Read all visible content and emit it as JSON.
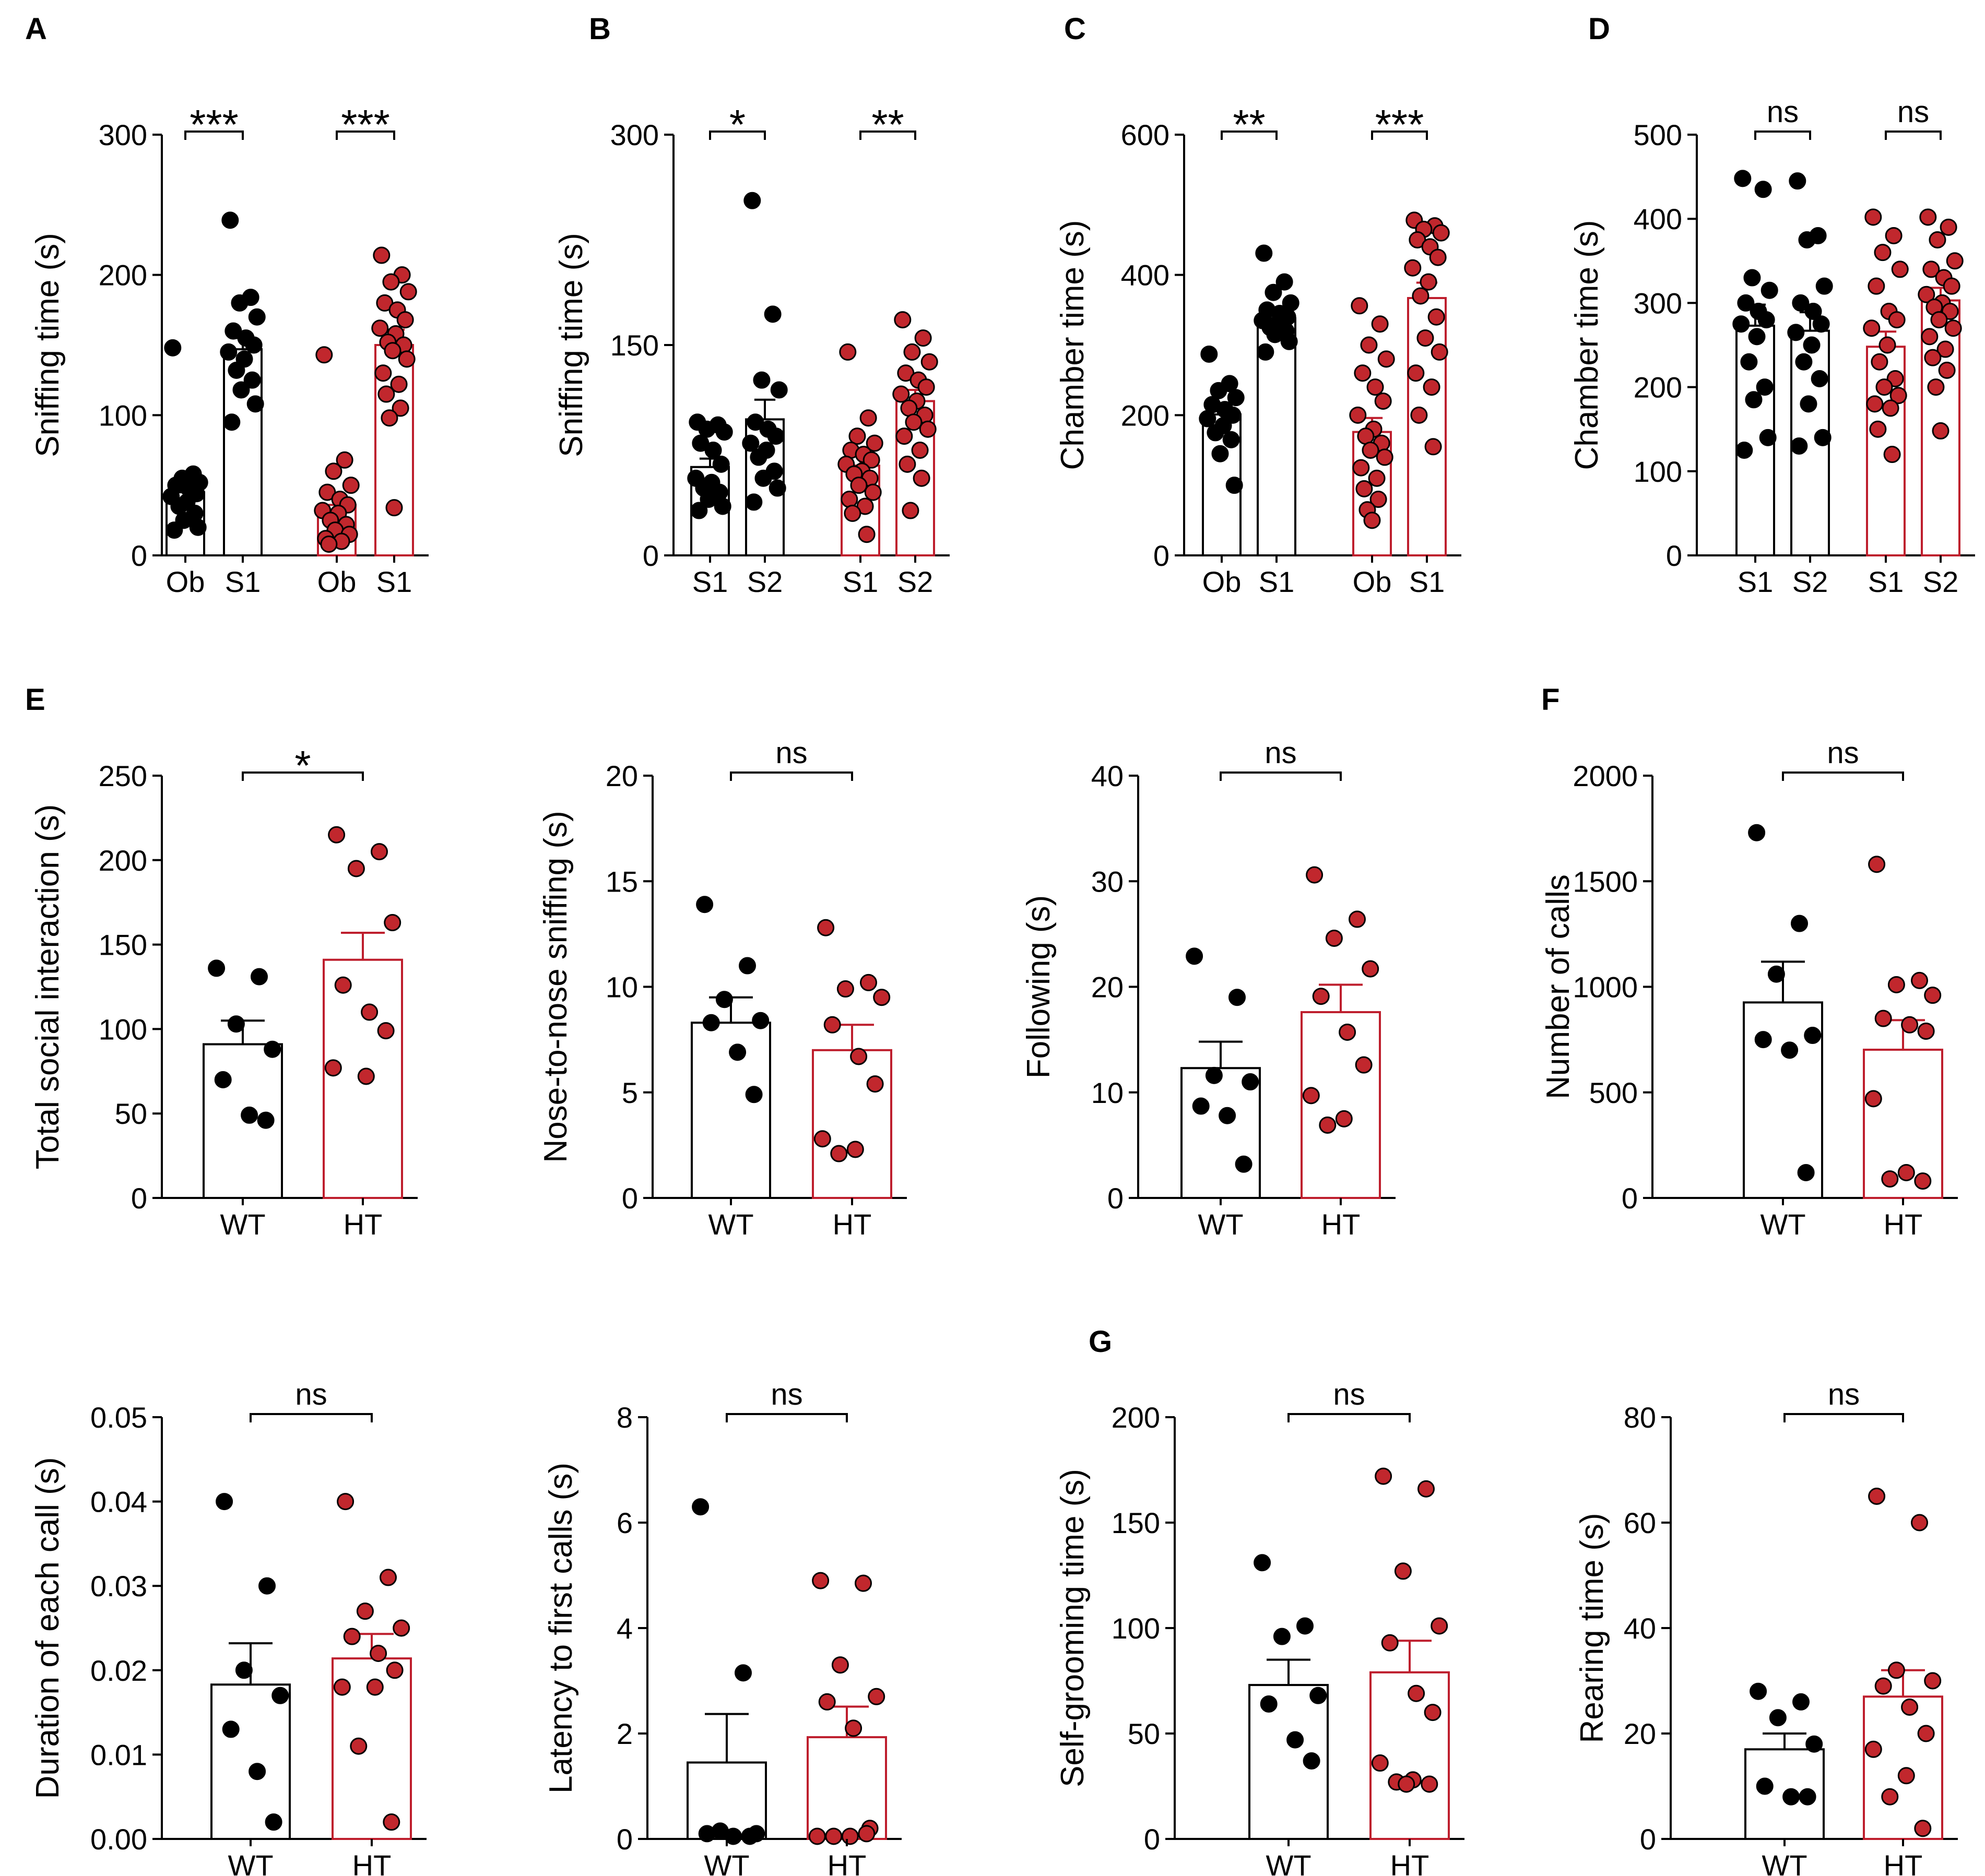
{
  "colors": {
    "wt": "#000000",
    "ht": "#be1e2d",
    "ht_dot": "#c1272d",
    "bar_fill": "#ffffff"
  },
  "panel_letters": [
    "A",
    "B",
    "C",
    "D",
    "E",
    "F",
    "G"
  ],
  "chart_data": [
    {
      "type": "bar",
      "letter": "A",
      "ylabel": "Sniffing time (s)",
      "ylim": [
        0,
        300
      ],
      "yticks": [
        "0",
        "100",
        "200",
        "300"
      ],
      "categories": [
        "Ob",
        "S1",
        "Ob",
        "S1"
      ],
      "groups": [
        "WT",
        "WT",
        "HT",
        "HT"
      ],
      "means": [
        45,
        147,
        36,
        150
      ],
      "sem": [
        5,
        8,
        6,
        11
      ],
      "points": [
        [
          148,
          58,
          55,
          52,
          50,
          48,
          44,
          42,
          38,
          35,
          30,
          25,
          20,
          18
        ],
        [
          239,
          184,
          180,
          170,
          160,
          155,
          150,
          145,
          140,
          132,
          125,
          118,
          108,
          95
        ],
        [
          143,
          68,
          60,
          50,
          45,
          40,
          36,
          32,
          30,
          25,
          22,
          18,
          15,
          12,
          10,
          8
        ],
        [
          214,
          200,
          195,
          188,
          180,
          175,
          168,
          162,
          158,
          152,
          150,
          146,
          140,
          130,
          122,
          115,
          105,
          98,
          34
        ]
      ],
      "significance": [
        "***",
        "***"
      ]
    },
    {
      "type": "bar",
      "letter": "B",
      "ylabel": "Sniffing time (s)",
      "ylim": [
        0,
        300
      ],
      "yticks": [
        "0",
        "150",
        "300"
      ],
      "categories": [
        "S1",
        "S2",
        "S1",
        "S2"
      ],
      "groups": [
        "WT",
        "WT",
        "HT",
        "HT"
      ],
      "means": [
        63,
        97,
        64,
        110
      ],
      "sem": [
        6,
        14,
        7,
        8
      ],
      "points": [
        [
          95,
          93,
          90,
          88,
          80,
          75,
          65,
          55,
          52,
          48,
          45,
          40,
          35,
          32
        ],
        [
          253,
          172,
          125,
          118,
          95,
          90,
          85,
          80,
          75,
          70,
          60,
          55,
          48,
          38
        ],
        [
          145,
          98,
          85,
          80,
          75,
          72,
          68,
          65,
          60,
          58,
          55,
          50,
          45,
          40,
          35,
          30,
          15
        ],
        [
          168,
          155,
          145,
          138,
          130,
          125,
          120,
          115,
          110,
          105,
          100,
          95,
          90,
          85,
          75,
          65,
          55,
          32
        ]
      ],
      "significance": [
        "*",
        "**"
      ]
    },
    {
      "type": "bar",
      "letter": "C",
      "ylabel": "Chamber time (s)",
      "ylim": [
        0,
        600
      ],
      "yticks": [
        "0",
        "200",
        "400",
        "600"
      ],
      "categories": [
        "Ob",
        "S1",
        "Ob",
        "S1"
      ],
      "groups": [
        "WT",
        "WT",
        "HT",
        "HT"
      ],
      "means": [
        201,
        338,
        176,
        367
      ],
      "sem": [
        12,
        10,
        20,
        22
      ],
      "points": [
        [
          287,
          245,
          235,
          225,
          215,
          208,
          200,
          195,
          185,
          175,
          165,
          145,
          100
        ],
        [
          431,
          390,
          375,
          360,
          350,
          345,
          340,
          335,
          330,
          325,
          320,
          315,
          305,
          290
        ],
        [
          356,
          330,
          300,
          280,
          260,
          240,
          220,
          200,
          180,
          170,
          160,
          150,
          140,
          125,
          110,
          95,
          80,
          65,
          50
        ],
        [
          478,
          470,
          465,
          460,
          450,
          440,
          425,
          410,
          390,
          370,
          340,
          310,
          290,
          260,
          240,
          200,
          155
        ]
      ],
      "significance": [
        "**",
        "***"
      ]
    },
    {
      "type": "bar",
      "letter": "D",
      "ylabel": "Chamber time (s)",
      "ylim": [
        0,
        500
      ],
      "yticks": [
        "0",
        "100",
        "200",
        "300",
        "400",
        "500"
      ],
      "categories": [
        "S1",
        "S2",
        "S1",
        "S2"
      ],
      "groups": [
        "WT",
        "WT",
        "HT",
        "HT"
      ],
      "means": [
        273,
        267,
        248,
        303
      ],
      "sem": [
        25,
        22,
        18,
        15
      ],
      "points": [
        [
          448,
          435,
          330,
          315,
          300,
          290,
          280,
          275,
          260,
          230,
          200,
          185,
          140,
          125
        ],
        [
          445,
          380,
          375,
          320,
          300,
          290,
          275,
          265,
          250,
          230,
          210,
          180,
          140,
          130
        ],
        [
          402,
          380,
          360,
          340,
          320,
          290,
          280,
          270,
          250,
          230,
          210,
          200,
          190,
          180,
          175,
          150,
          120
        ],
        [
          402,
          390,
          375,
          350,
          340,
          330,
          320,
          310,
          300,
          295,
          290,
          280,
          270,
          260,
          245,
          235,
          220,
          200,
          148
        ]
      ],
      "significance": [
        "ns",
        "ns"
      ]
    },
    {
      "type": "bar",
      "letter": "E",
      "ylabel": "Total social interaction (s)",
      "ylim": [
        0,
        250
      ],
      "yticks": [
        "0",
        "50",
        "100",
        "150",
        "200",
        "250"
      ],
      "categories": [
        "WT",
        "HT"
      ],
      "groups": [
        "WT",
        "HT"
      ],
      "means": [
        91,
        141
      ],
      "sem": [
        14,
        16
      ],
      "points": [
        [
          136,
          131,
          103,
          88,
          70,
          49,
          46
        ],
        [
          215,
          205,
          195,
          163,
          126,
          110,
          99,
          77,
          72
        ]
      ],
      "significance": [
        "*"
      ]
    },
    {
      "type": "bar",
      "letter": "",
      "ylabel": "Nose-to-nose sniffing (s)",
      "ylim": [
        0,
        20
      ],
      "yticks": [
        "0",
        "5",
        "10",
        "15",
        "20"
      ],
      "categories": [
        "WT",
        "HT"
      ],
      "groups": [
        "WT",
        "HT"
      ],
      "means": [
        8.3,
        7.0
      ],
      "sem": [
        1.2,
        1.2
      ],
      "points": [
        [
          13.9,
          11.0,
          9.4,
          8.4,
          8.3,
          6.9,
          4.9
        ],
        [
          12.8,
          10.2,
          9.9,
          9.5,
          8.2,
          6.7,
          5.4,
          2.8,
          2.3,
          2.1
        ]
      ],
      "significance": [
        "ns"
      ]
    },
    {
      "type": "bar",
      "letter": "",
      "ylabel": "Following (s)",
      "ylim": [
        0,
        40
      ],
      "yticks": [
        "0",
        "10",
        "20",
        "30",
        "40"
      ],
      "categories": [
        "WT",
        "HT"
      ],
      "groups": [
        "WT",
        "HT"
      ],
      "means": [
        12.3,
        17.6
      ],
      "sem": [
        2.5,
        2.6
      ],
      "points": [
        [
          22.9,
          19.0,
          11.6,
          11.0,
          8.7,
          7.8,
          3.2
        ],
        [
          30.6,
          26.4,
          24.6,
          21.7,
          19.1,
          15.7,
          12.6,
          9.7,
          7.5,
          6.9
        ]
      ],
      "significance": [
        "ns"
      ]
    },
    {
      "type": "bar",
      "letter": "F",
      "ylabel": "Number of calls",
      "ylim": [
        0,
        2000
      ],
      "yticks": [
        "0",
        "500",
        "1000",
        "1500",
        "2000"
      ],
      "categories": [
        "WT",
        "HT"
      ],
      "groups": [
        "WT",
        "HT"
      ],
      "means": [
        926,
        702
      ],
      "sem": [
        193,
        140
      ],
      "points": [
        [
          1730,
          1300,
          1060,
          770,
          750,
          700,
          120
        ],
        [
          1580,
          1030,
          1010,
          960,
          850,
          820,
          790,
          470,
          120,
          90,
          80
        ]
      ],
      "significance": [
        "ns"
      ]
    },
    {
      "type": "bar",
      "letter": "",
      "ylabel": "Duration of each call (s)",
      "ylim": [
        0,
        0.05
      ],
      "yticks": [
        "0.00",
        "0.01",
        "0.02",
        "0.03",
        "0.04",
        "0.05"
      ],
      "categories": [
        "WT",
        "HT"
      ],
      "groups": [
        "WT",
        "HT"
      ],
      "means": [
        0.0183,
        0.0214
      ],
      "sem": [
        0.0049,
        0.0029
      ],
      "points": [
        [
          0.04,
          0.03,
          0.02,
          0.017,
          0.013,
          0.008,
          0.002
        ],
        [
          0.04,
          0.031,
          0.027,
          0.025,
          0.024,
          0.022,
          0.02,
          0.018,
          0.018,
          0.011,
          0.002
        ]
      ],
      "significance": [
        "ns"
      ]
    },
    {
      "type": "bar",
      "letter": "",
      "ylabel": "Latency to first calls (s)",
      "ylim": [
        0,
        8
      ],
      "yticks": [
        "0",
        "2",
        "4",
        "6",
        "8"
      ],
      "categories": [
        "WT",
        "HT"
      ],
      "groups": [
        "WT",
        "HT"
      ],
      "means": [
        1.45,
        1.93
      ],
      "sem": [
        0.92,
        0.58
      ],
      "points": [
        [
          6.3,
          3.15,
          0.15,
          0.1,
          0.1,
          0.05,
          0.05
        ],
        [
          4.9,
          4.85,
          3.3,
          2.7,
          2.6,
          2.1,
          0.2,
          0.05,
          0.05,
          0.05,
          0.1
        ]
      ],
      "significance": [
        "ns"
      ]
    },
    {
      "type": "bar",
      "letter": "G",
      "ylabel": "Self-grooming time (s)",
      "ylim": [
        0,
        200
      ],
      "yticks": [
        "0",
        "50",
        "100",
        "150",
        "200"
      ],
      "categories": [
        "WT",
        "HT"
      ],
      "groups": [
        "WT",
        "HT"
      ],
      "means": [
        73,
        79
      ],
      "sem": [
        12,
        15
      ],
      "points": [
        [
          131,
          101,
          96,
          68,
          64,
          47,
          37
        ],
        [
          172,
          166,
          127,
          101,
          93,
          69,
          60,
          36,
          28,
          27,
          26,
          26
        ]
      ],
      "significance": [
        "ns"
      ]
    },
    {
      "type": "bar",
      "letter": "",
      "ylabel": "Rearing time (s)",
      "ylim": [
        0,
        80
      ],
      "yticks": [
        "0",
        "20",
        "40",
        "60",
        "80"
      ],
      "categories": [
        "WT",
        "HT"
      ],
      "groups": [
        "WT",
        "HT"
      ],
      "means": [
        17,
        27
      ],
      "sem": [
        3,
        5
      ],
      "points": [
        [
          28,
          26,
          23,
          18,
          10,
          8,
          8
        ],
        [
          65,
          60,
          32,
          30,
          29,
          25,
          20,
          17,
          12,
          8,
          2
        ]
      ],
      "significance": [
        "ns"
      ]
    }
  ]
}
